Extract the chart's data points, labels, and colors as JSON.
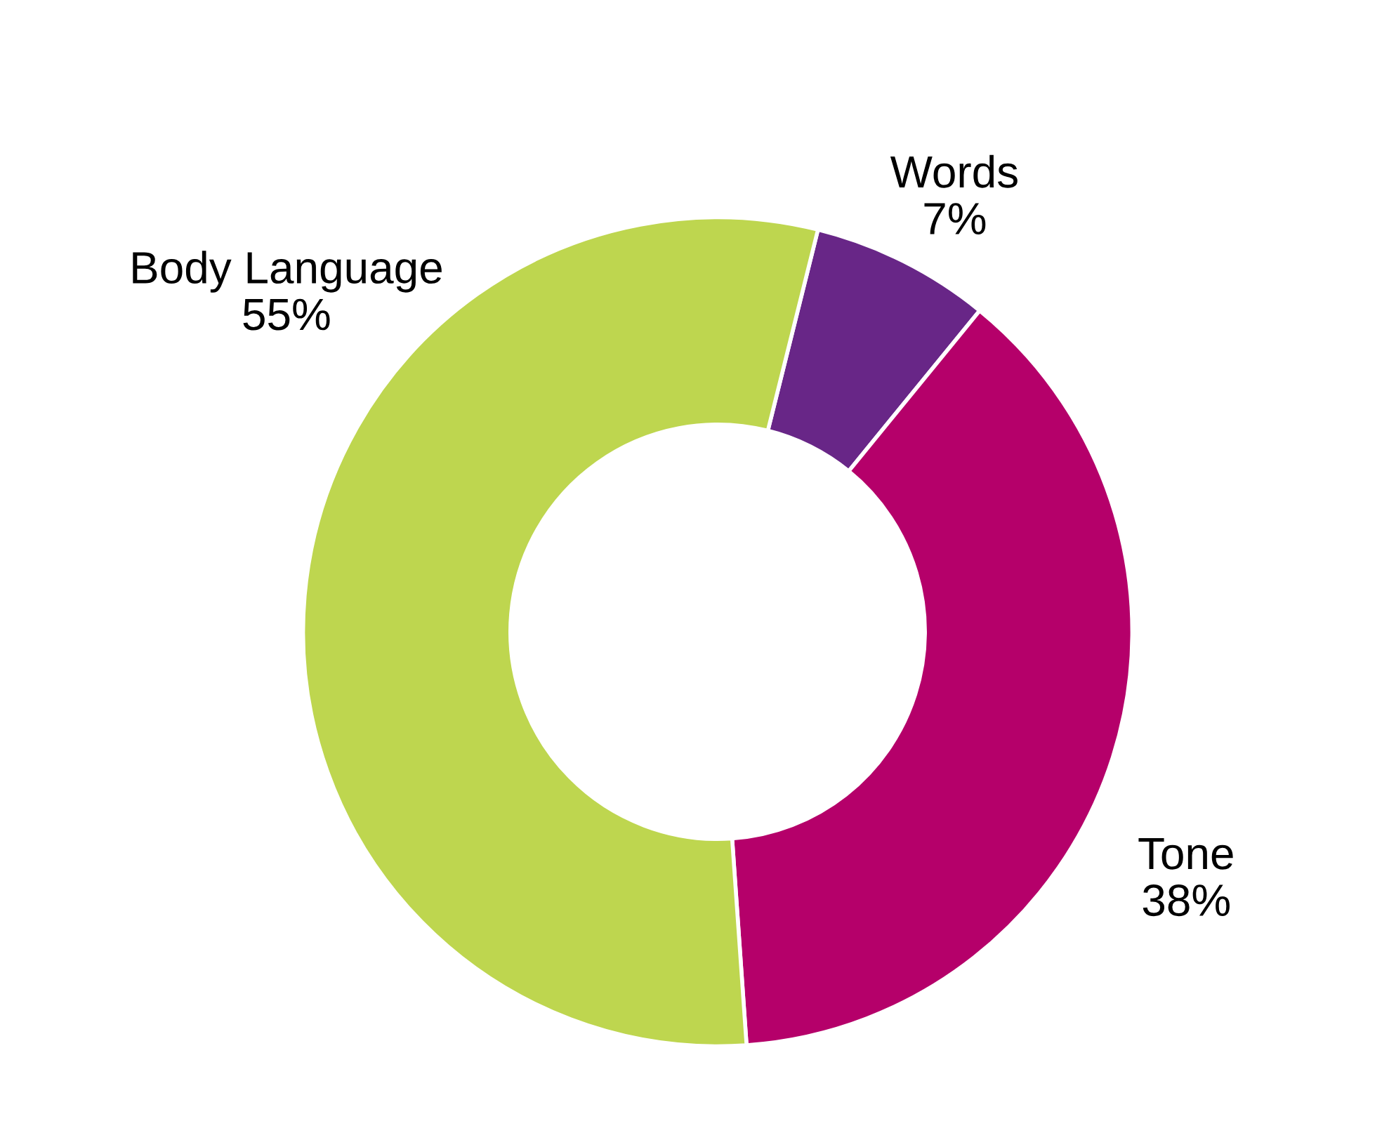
{
  "chart_data": {
    "type": "donut",
    "categories": [
      "Words",
      "Tone",
      "Body Language"
    ],
    "values": [
      7,
      38,
      55
    ],
    "colors": [
      "#682687",
      "#b5006a",
      "#bed64f"
    ],
    "value_labels": [
      "7%",
      "38%",
      "55%"
    ]
  }
}
